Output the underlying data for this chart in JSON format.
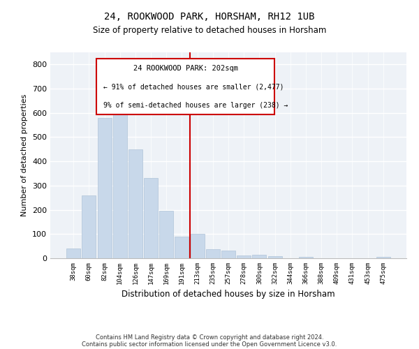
{
  "title1": "24, ROOKWOOD PARK, HORSHAM, RH12 1UB",
  "title2": "Size of property relative to detached houses in Horsham",
  "xlabel": "Distribution of detached houses by size in Horsham",
  "ylabel": "Number of detached properties",
  "categories": [
    "38sqm",
    "60sqm",
    "82sqm",
    "104sqm",
    "126sqm",
    "147sqm",
    "169sqm",
    "191sqm",
    "213sqm",
    "235sqm",
    "257sqm",
    "278sqm",
    "300sqm",
    "322sqm",
    "344sqm",
    "366sqm",
    "388sqm",
    "409sqm",
    "431sqm",
    "453sqm",
    "475sqm"
  ],
  "values": [
    40,
    260,
    580,
    600,
    450,
    330,
    195,
    90,
    100,
    37,
    32,
    12,
    15,
    10,
    0,
    5,
    0,
    0,
    0,
    0,
    5
  ],
  "bar_color": "#c8d8ea",
  "bar_edge_color": "#b0c4d8",
  "marker_color": "#cc0000",
  "annotation_title": "24 ROOKWOOD PARK: 202sqm",
  "annotation_line1": "← 91% of detached houses are smaller (2,477)",
  "annotation_line2": "9% of semi-detached houses are larger (238) →",
  "annotation_box_color": "#cc0000",
  "footer1": "Contains HM Land Registry data © Crown copyright and database right 2024.",
  "footer2": "Contains public sector information licensed under the Open Government Licence v3.0.",
  "bg_color": "#eef2f7",
  "ylim": [
    0,
    850
  ],
  "yticks": [
    0,
    100,
    200,
    300,
    400,
    500,
    600,
    700,
    800
  ]
}
